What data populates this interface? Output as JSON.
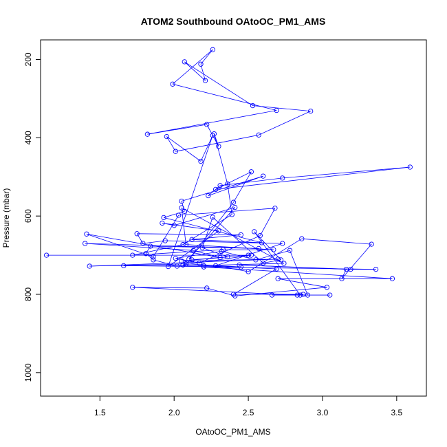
{
  "chart_data": {
    "type": "line",
    "title": "ATOM2 Southbound OAtoOC_PM1_AMS",
    "xlabel": "OAtoOC_PM1_AMS",
    "ylabel": "Pressure (mbar)",
    "xlim": [
      1.1,
      3.7
    ],
    "ylim": [
      150,
      1060
    ],
    "y_reversed": true,
    "x_ticks": [
      1.5,
      2.0,
      2.5,
      3.0,
      3.5
    ],
    "x_tick_labels": [
      "1.5",
      "2.0",
      "2.5",
      "3.0",
      "3.5"
    ],
    "y_ticks": [
      200,
      400,
      600,
      800,
      1000
    ],
    "y_tick_labels": [
      "200",
      "400",
      "600",
      "800",
      "1000"
    ],
    "series_color": "#0000ff",
    "marker": "open-circle",
    "series": [
      {
        "name": "OAtoOC_PM1_AMS",
        "points": [
          [
            1.14,
            700
          ],
          [
            2.5,
            700
          ],
          [
            2.05,
            715
          ],
          [
            2.7,
            710
          ],
          [
            1.43,
            728
          ],
          [
            2.08,
            722
          ],
          [
            2.45,
            730
          ],
          [
            1.66,
            727
          ],
          [
            2.2,
            727
          ],
          [
            2.69,
            735
          ],
          [
            2.4,
            800
          ],
          [
            2.87,
            800
          ],
          [
            2.66,
            802
          ],
          [
            3.05,
            802
          ],
          [
            2.83,
            802
          ],
          [
            1.72,
            782
          ],
          [
            2.22,
            784
          ],
          [
            2.41,
            804
          ],
          [
            3.03,
            782
          ],
          [
            2.7,
            760
          ],
          [
            3.47,
            760
          ],
          [
            2.2,
            730
          ],
          [
            3.36,
            736
          ],
          [
            3.19,
            736
          ],
          [
            2.44,
            725
          ],
          [
            3.16,
            736
          ],
          [
            3.13,
            760
          ],
          [
            3.33,
            672
          ],
          [
            2.86,
            658
          ],
          [
            2.5,
            742
          ],
          [
            2.28,
            727
          ],
          [
            2.73,
            670
          ],
          [
            1.94,
            663
          ],
          [
            1.79,
            670
          ],
          [
            1.75,
            645
          ],
          [
            2.45,
            648
          ],
          [
            2.12,
            660
          ],
          [
            2.59,
            668
          ],
          [
            1.93,
            604
          ],
          [
            2.07,
            588
          ],
          [
            2.05,
            562
          ],
          [
            2.6,
            498
          ],
          [
            2.23,
            548
          ],
          [
            2.31,
            522
          ],
          [
            2.73,
            503
          ],
          [
            3.59,
            475
          ],
          [
            2.28,
            532
          ],
          [
            2.52,
            487
          ],
          [
            2.4,
            565
          ],
          [
            2.1,
            710
          ],
          [
            2.41,
            578
          ],
          [
            2.0,
            624
          ],
          [
            1.92,
            618
          ],
          [
            2.3,
            638
          ],
          [
            1.96,
            729
          ],
          [
            2.26,
            394
          ],
          [
            2.18,
            460
          ],
          [
            1.95,
            397
          ],
          [
            2.01,
            435
          ],
          [
            2.57,
            393
          ],
          [
            2.92,
            332
          ],
          [
            2.53,
            318
          ],
          [
            2.07,
            206
          ],
          [
            2.21,
            254
          ],
          [
            2.18,
            212
          ],
          [
            2.26,
            175
          ],
          [
            1.99,
            263
          ],
          [
            2.69,
            330
          ],
          [
            1.82,
            391
          ],
          [
            2.22,
            366
          ],
          [
            2.3,
            422
          ],
          [
            2.27,
            390
          ],
          [
            2.36,
            518
          ],
          [
            2.39,
            596
          ],
          [
            2.06,
            673
          ],
          [
            1.72,
            700
          ],
          [
            2.33,
            686
          ],
          [
            2.67,
            686
          ],
          [
            2.08,
            673
          ],
          [
            2.05,
            579
          ],
          [
            2.74,
            721
          ],
          [
            2.02,
            728
          ],
          [
            1.86,
            712
          ],
          [
            1.81,
            696
          ],
          [
            1.84,
            677
          ],
          [
            2.57,
            683
          ],
          [
            1.4,
            670
          ],
          [
            2.13,
            688
          ],
          [
            2.31,
            706
          ],
          [
            1.41,
            646
          ],
          [
            1.86,
            704
          ],
          [
            2.03,
            598
          ],
          [
            2.68,
            580
          ],
          [
            2.58,
            650
          ],
          [
            2.17,
            720
          ],
          [
            2.01,
            708
          ],
          [
            2.32,
            690
          ],
          [
            2.55,
            712
          ],
          [
            2.78,
            688
          ],
          [
            2.9,
            802
          ],
          [
            2.85,
            802
          ],
          [
            2.54,
            640
          ],
          [
            2.72,
            712
          ],
          [
            2.6,
            720
          ],
          [
            2.26,
            603
          ],
          [
            2.19,
            681
          ],
          [
            2.36,
            704
          ],
          [
            2.12,
            712
          ],
          [
            2.06,
            725
          ],
          [
            2.52,
            700
          ]
        ]
      }
    ]
  }
}
